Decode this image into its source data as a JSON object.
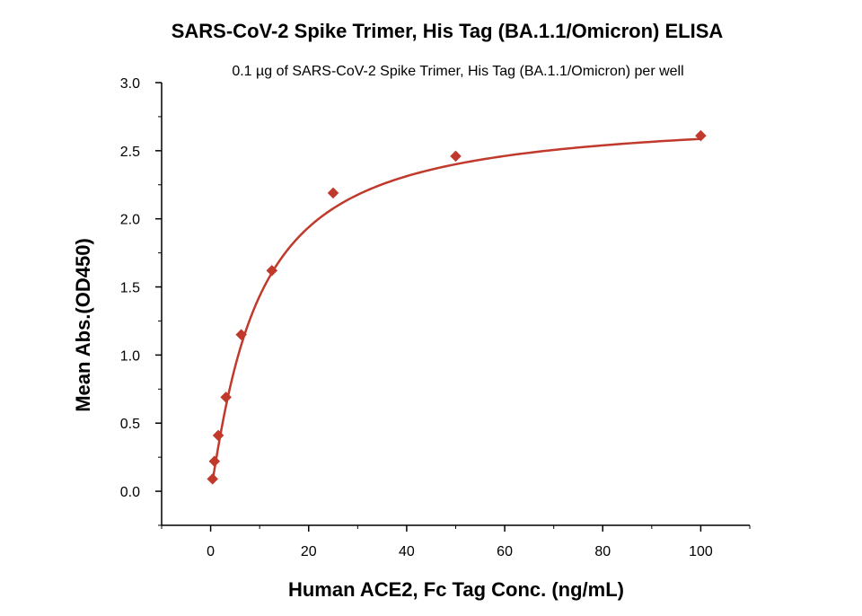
{
  "chart_data": {
    "type": "scatter",
    "title": "SARS-CoV-2 Spike Trimer, His Tag (BA.1.1/Omicron) ELISA",
    "subtitle": "0.1 µg of SARS-CoV-2 Spike Trimer, His Tag (BA.1.1/Omicron) per well",
    "xlabel": "Human ACE2, Fc Tag Conc. (ng/mL)",
    "ylabel": "Mean Abs.(OD450)",
    "xlim": [
      -10,
      110
    ],
    "ylim": [
      -0.25,
      3.0
    ],
    "x_ticks": [
      0,
      20,
      40,
      60,
      80,
      100
    ],
    "y_ticks": [
      0.0,
      0.5,
      1.0,
      1.5,
      2.0,
      2.5,
      3.0
    ],
    "x_tick_labels": [
      "0",
      "20",
      "40",
      "60",
      "80",
      "100"
    ],
    "y_tick_labels": [
      "0.0",
      "0.5",
      "1.0",
      "1.5",
      "2.0",
      "2.5",
      "3.0"
    ],
    "grid": false,
    "legend": "none",
    "series": [
      {
        "marker": "diamond",
        "color": "#c0392b",
        "x": [
          0.39,
          0.78,
          1.56,
          3.13,
          6.25,
          12.5,
          25,
          50,
          100
        ],
        "y": [
          0.09,
          0.22,
          0.41,
          0.69,
          1.15,
          1.62,
          2.19,
          2.46,
          2.61
        ]
      }
    ],
    "fit_curve": {
      "type": "line",
      "color": "#c0392b",
      "model": "4PL",
      "params": {
        "bottom": 0.0,
        "top": 2.77,
        "ec50": 9.4,
        "hill": 1.12
      }
    }
  }
}
